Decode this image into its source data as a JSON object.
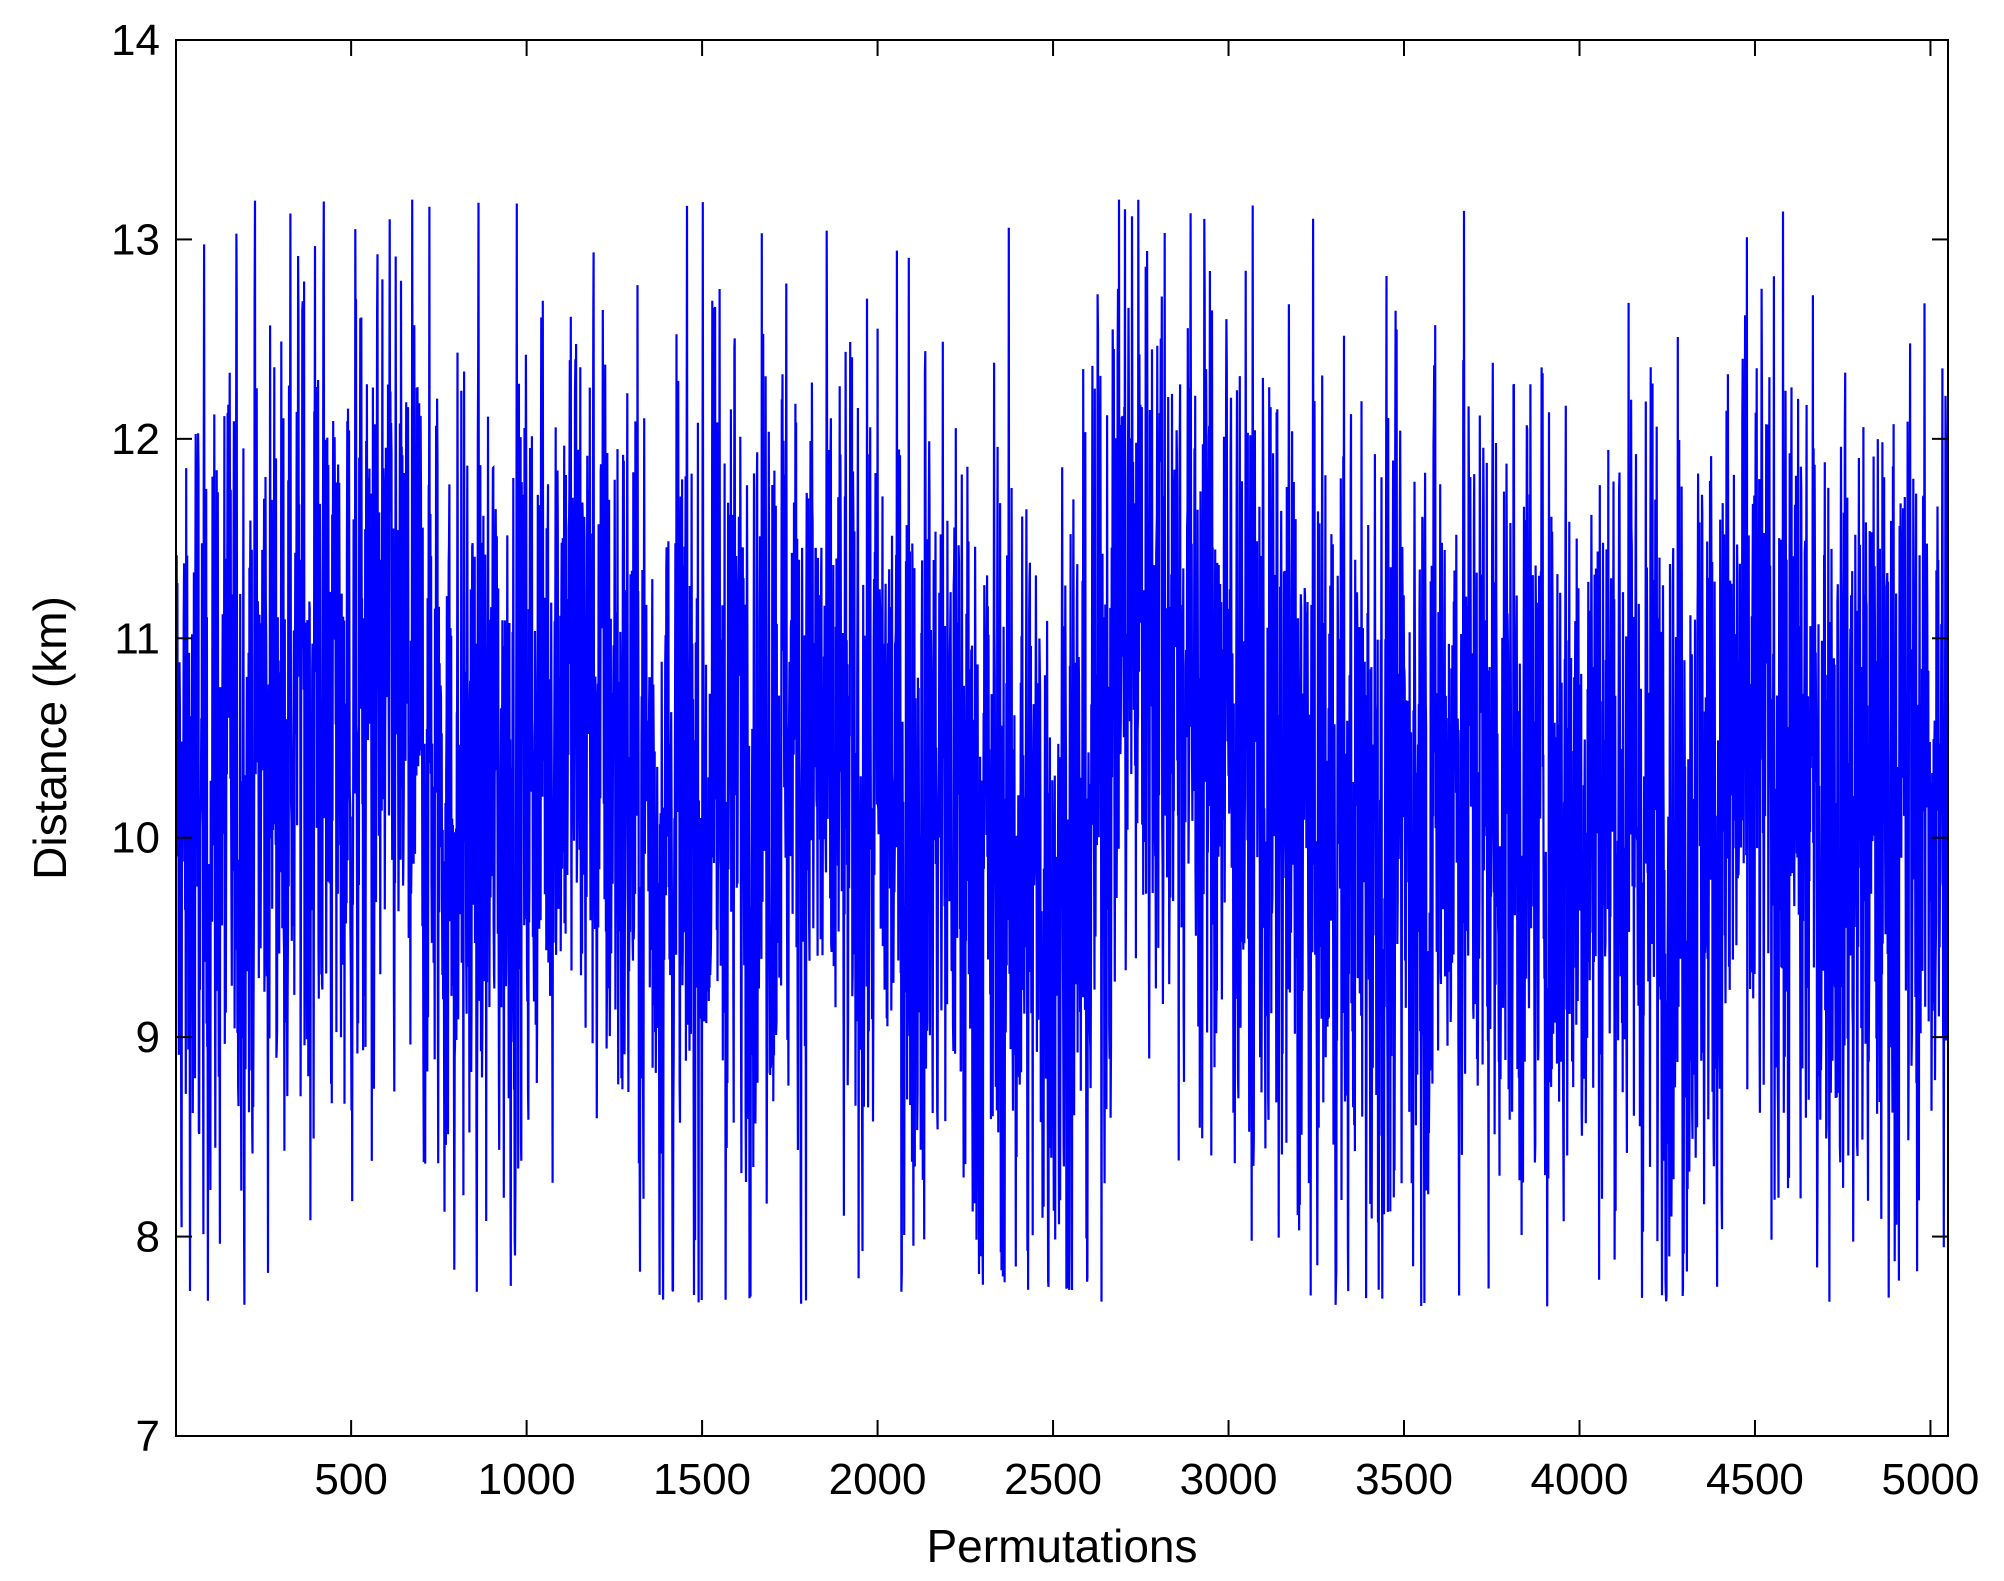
{
  "chart_data": {
    "type": "line",
    "title": "",
    "xlabel": "Permutations",
    "ylabel": "Distance (km)",
    "xlim": [
      1,
      5050
    ],
    "ylim": [
      7,
      14
    ],
    "xticks": [
      500,
      1000,
      1500,
      2000,
      2500,
      3000,
      3500,
      4000,
      4500,
      5000
    ],
    "yticks": [
      7,
      8,
      9,
      10,
      11,
      12,
      13,
      14
    ],
    "grid": false,
    "legend": "none",
    "n_points": 5050,
    "series": [
      {
        "color": "#0000ff",
        "mean_profile": [
          [
            1,
            10.0
          ],
          [
            100,
            10.2
          ],
          [
            200,
            10.3
          ],
          [
            300,
            10.6
          ],
          [
            400,
            10.8
          ],
          [
            500,
            10.6
          ],
          [
            600,
            10.7
          ],
          [
            700,
            10.5
          ],
          [
            800,
            10.1
          ],
          [
            900,
            10.2
          ],
          [
            1000,
            10.4
          ],
          [
            1100,
            10.9
          ],
          [
            1200,
            10.6
          ],
          [
            1300,
            10.3
          ],
          [
            1400,
            10.0
          ],
          [
            1500,
            10.2
          ],
          [
            1600,
            10.4
          ],
          [
            1700,
            10.6
          ],
          [
            1800,
            10.5
          ],
          [
            1900,
            10.2
          ],
          [
            2000,
            10.3
          ],
          [
            2100,
            10.2
          ],
          [
            2200,
            10.3
          ],
          [
            2300,
            9.9
          ],
          [
            2400,
            9.8
          ],
          [
            2500,
            9.8
          ],
          [
            2600,
            9.9
          ],
          [
            2700,
            11.2
          ],
          [
            2800,
            11.2
          ],
          [
            2900,
            10.8
          ],
          [
            3000,
            10.6
          ],
          [
            3100,
            10.3
          ],
          [
            3200,
            10.1
          ],
          [
            3300,
            10.0
          ],
          [
            3400,
            10.0
          ],
          [
            3500,
            10.1
          ],
          [
            3600,
            10.3
          ],
          [
            3700,
            10.4
          ],
          [
            3800,
            10.2
          ],
          [
            3900,
            10.1
          ],
          [
            4000,
            10.2
          ],
          [
            4100,
            10.3
          ],
          [
            4200,
            10.1
          ],
          [
            4300,
            10.0
          ],
          [
            4400,
            10.2
          ],
          [
            4500,
            10.5
          ],
          [
            4600,
            10.3
          ],
          [
            4700,
            10.2
          ],
          [
            4800,
            10.1
          ],
          [
            4900,
            10.2
          ],
          [
            5000,
            10.3
          ],
          [
            5050,
            10.1
          ]
        ],
        "max": 13.2,
        "min": 7.65,
        "approx_std": 1.05
      }
    ]
  },
  "labels": {
    "xticks": [
      "500",
      "1000",
      "1500",
      "2000",
      "2500",
      "3000",
      "3500",
      "4000",
      "4500",
      "5000"
    ],
    "yticks": [
      "7",
      "8",
      "9",
      "10",
      "11",
      "12",
      "13",
      "14"
    ]
  }
}
